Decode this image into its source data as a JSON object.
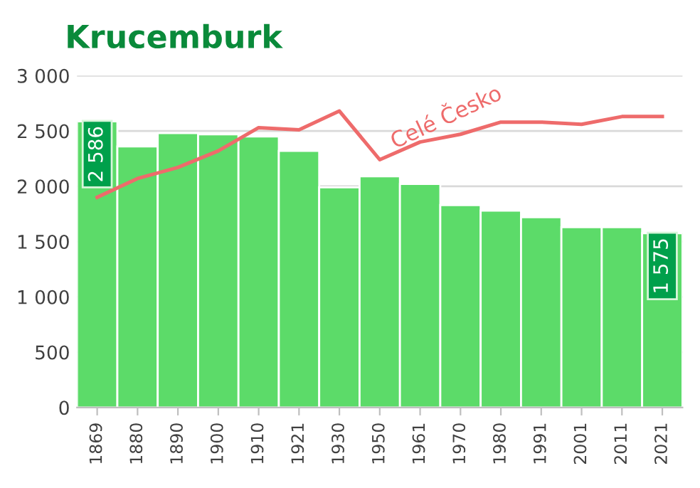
{
  "chart_data": {
    "type": "bar",
    "title": "Krucemburk",
    "categories": [
      "1869",
      "1880",
      "1890",
      "1900",
      "1910",
      "1921",
      "1930",
      "1950",
      "1961",
      "1970",
      "1980",
      "1991",
      "2001",
      "2011",
      "2021"
    ],
    "series": [
      {
        "color": "#5cdb69",
        "values": [
          2586,
          2360,
          2480,
          2470,
          2450,
          2320,
          1990,
          2090,
          2020,
          1830,
          1780,
          1720,
          1630,
          1630,
          1575
        ],
        "value_labels": [
          "2 586",
          null,
          null,
          null,
          null,
          null,
          null,
          null,
          null,
          null,
          null,
          null,
          null,
          null,
          "1 575"
        ]
      },
      {
        "type": "line",
        "name": "Celé Česko",
        "color": "#ee6b6b",
        "values": [
          1900,
          2070,
          2170,
          2320,
          2530,
          2510,
          2680,
          2240,
          2400,
          2470,
          2580,
          2580,
          2560,
          2630,
          2630
        ]
      }
    ],
    "ylim": [
      0,
      3000
    ],
    "yticks": [
      {
        "value": 0,
        "label": "0"
      },
      {
        "value": 500,
        "label": "500"
      },
      {
        "value": 1000,
        "label": "1 000"
      },
      {
        "value": 1500,
        "label": "1 500"
      },
      {
        "value": 2000,
        "label": "2 000"
      },
      {
        "value": 2500,
        "label": "2 500"
      },
      {
        "value": 3000,
        "label": "3 000"
      }
    ],
    "grid": "y",
    "legend": false
  }
}
